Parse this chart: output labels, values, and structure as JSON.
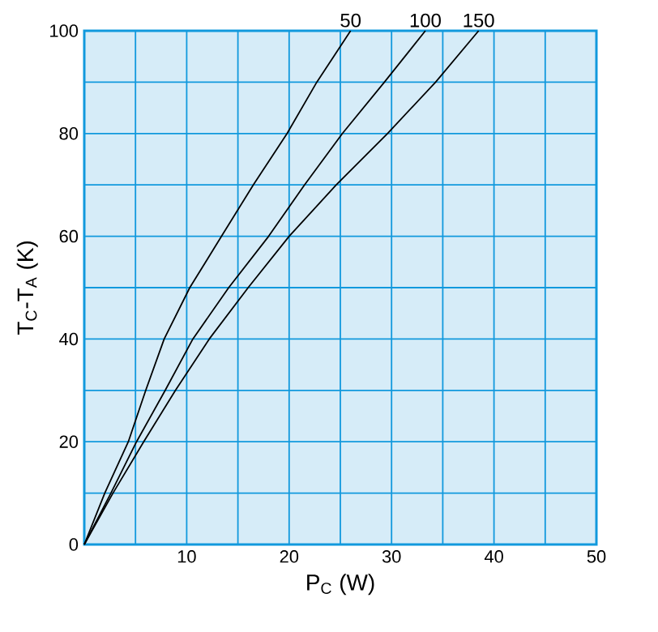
{
  "chart_data": {
    "type": "line",
    "xlabel": "P$_{C}$ (W)",
    "ylabel": "T$_{C}$-T$_{A}$ (K)",
    "series": [
      {
        "name": "50",
        "color": "#000000",
        "x": [
          0,
          2.0,
          4.3,
          6.0,
          7.8,
          10.3,
          13.4,
          16.5,
          19.8,
          22.7,
          26.0
        ],
        "values": [
          0,
          10,
          20,
          30,
          40,
          50,
          60,
          70,
          80,
          90,
          100
        ]
      },
      {
        "name": "100",
        "color": "#000000",
        "x": [
          0,
          2.6,
          5.1,
          7.9,
          10.6,
          14.1,
          18.0,
          21.5,
          25.2,
          29.3,
          33.3
        ],
        "values": [
          0,
          10,
          20,
          30,
          40,
          50,
          60,
          70,
          80,
          90,
          100
        ]
      },
      {
        "name": "150",
        "color": "#000000",
        "x": [
          0,
          2.8,
          5.8,
          8.9,
          12.2,
          16.0,
          20.0,
          24.6,
          29.6,
          34.3,
          38.5
        ],
        "values": [
          0,
          10,
          20,
          30,
          40,
          50,
          60,
          70,
          80,
          90,
          100
        ]
      }
    ],
    "xlim": [
      0,
      50
    ],
    "ylim": [
      0,
      100
    ],
    "xticks": [
      {
        "value": 0,
        "label": null
      },
      {
        "value": 5,
        "label": null
      },
      10,
      {
        "value": 15,
        "label": null
      },
      20,
      {
        "value": 25,
        "label": null
      },
      30,
      {
        "value": 35,
        "label": null
      },
      40,
      {
        "value": 45,
        "label": null
      },
      50
    ],
    "yticks": [
      0,
      {
        "value": 10,
        "label": null
      },
      20,
      {
        "value": 30,
        "label": null
      },
      40,
      {
        "value": 50,
        "label": null
      },
      60,
      {
        "value": 70,
        "label": null
      },
      80,
      {
        "value": 90,
        "label": null
      },
      100
    ],
    "grid": true,
    "legend": false,
    "marker": "none",
    "line_style": "solid"
  }
}
